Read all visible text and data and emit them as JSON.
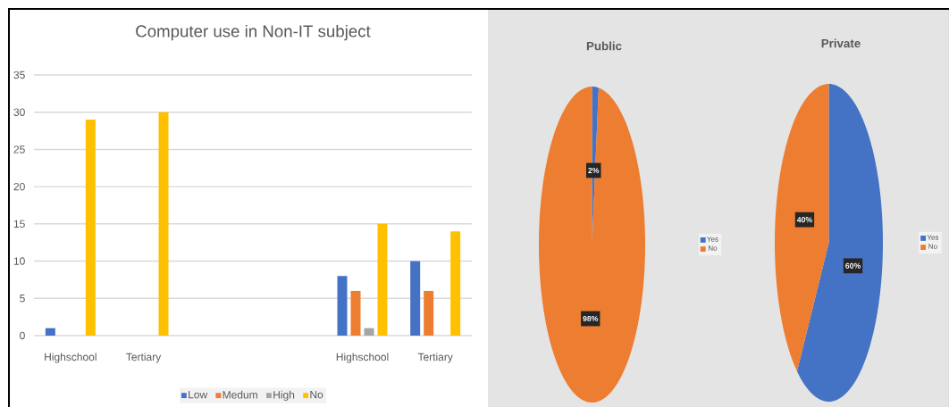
{
  "chart_data": [
    {
      "type": "bar",
      "title": "Computer use in Non-IT subject",
      "categories": [
        "Highschool",
        "Tertiary",
        null,
        null,
        "Highschool",
        "Tertiary"
      ],
      "series": [
        {
          "name": "Low",
          "color": "#4472c4",
          "values": [
            1,
            0,
            null,
            null,
            8,
            10
          ]
        },
        {
          "name": "Medum",
          "color": "#ed7d31",
          "values": [
            0,
            0,
            null,
            null,
            6,
            6
          ]
        },
        {
          "name": "High",
          "color": "#a5a5a5",
          "values": [
            0,
            0,
            null,
            null,
            1,
            0
          ]
        },
        {
          "name": "No",
          "color": "#ffc000",
          "values": [
            29,
            30,
            null,
            null,
            15,
            14
          ]
        }
      ],
      "ylim": [
        0,
        35
      ],
      "yticks": [
        0,
        5,
        10,
        15,
        20,
        25,
        30,
        35
      ],
      "grid": "y",
      "legend": "bottom"
    },
    {
      "type": "pie",
      "title": "Public",
      "categories": [
        "Yes",
        "No"
      ],
      "values": [
        2,
        98
      ],
      "colors": [
        "#4472c4",
        "#ed7d31"
      ],
      "value_labels": [
        "2%",
        "98%"
      ],
      "legend": "right"
    },
    {
      "type": "pie",
      "title": "Private",
      "categories": [
        "Yes",
        "No"
      ],
      "values": [
        60,
        40
      ],
      "colors": [
        "#4472c4",
        "#ed7d31"
      ],
      "value_labels": [
        "60%",
        "40%"
      ],
      "legend": "right"
    }
  ]
}
